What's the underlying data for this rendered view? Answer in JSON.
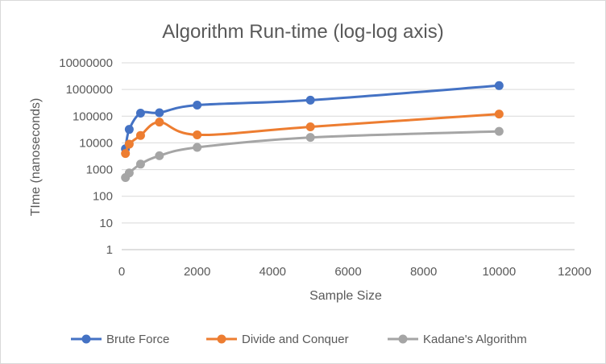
{
  "chart_data": {
    "type": "line",
    "title": "Algorithm Run-time (log-log axis)",
    "xlabel": "Sample Size",
    "ylabel": "TIme (nanoseconds)",
    "xlim": [
      0,
      12000
    ],
    "ylim": [
      1,
      10000000
    ],
    "yscale": "log",
    "x_ticks": [
      "0",
      "2000",
      "4000",
      "6000",
      "8000",
      "10000",
      "12000"
    ],
    "y_ticks": [
      "1",
      "10",
      "100",
      "1000",
      "10000",
      "100000",
      "1000000",
      "10000000"
    ],
    "grid": "horizontal",
    "legend_position": "bottom",
    "smoothed": true,
    "series": [
      {
        "name": "Brute Force",
        "color": "#4472C4",
        "x": [
          100,
          200,
          500,
          1000,
          2000,
          5000,
          10000
        ],
        "y": [
          6000,
          32000,
          130000,
          135000,
          260000,
          400000,
          1400000
        ]
      },
      {
        "name": "Divide and Conquer",
        "color": "#ED7D31",
        "x": [
          100,
          200,
          500,
          1000,
          2000,
          5000,
          10000
        ],
        "y": [
          4000,
          9000,
          19000,
          60000,
          20000,
          40000,
          120000
        ]
      },
      {
        "name": "Kadane's Algorithm",
        "color": "#A5A5A5",
        "x": [
          100,
          200,
          500,
          1000,
          2000,
          5000,
          10000
        ],
        "y": [
          500,
          750,
          1600,
          3300,
          6800,
          16000,
          27000
        ]
      }
    ]
  }
}
